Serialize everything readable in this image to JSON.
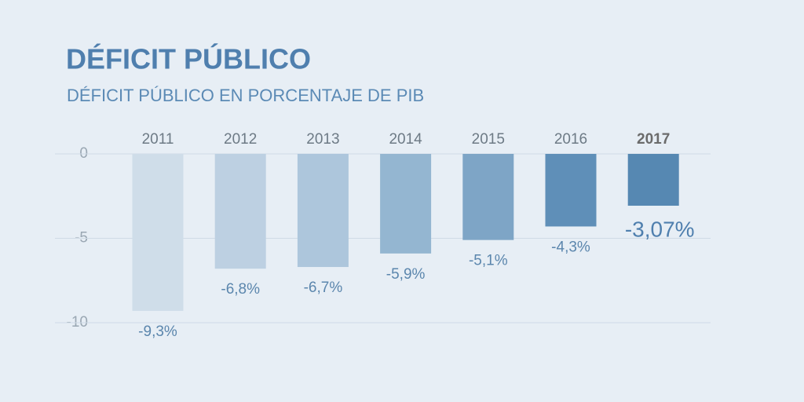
{
  "chart_data": {
    "type": "bar",
    "title": "DÉFICIT PÚBLICO",
    "subtitle": "DÉFICIT PÚBLICO EN PORCENTAJE DE PIB",
    "categories": [
      "2011",
      "2012",
      "2013",
      "2014",
      "2015",
      "2016",
      "2017"
    ],
    "values": [
      -9.3,
      -6.8,
      -6.7,
      -5.9,
      -5.1,
      -4.3,
      -3.07
    ],
    "value_labels": [
      "-9,3%",
      "-6,8%",
      "-6,7%",
      "-5,9%",
      "-5,1%",
      "-4,3%",
      "-3,07%"
    ],
    "colors": [
      "#cfdde9",
      "#bdd0e2",
      "#adc6dc",
      "#94b6d1",
      "#7ea5c6",
      "#5f8fb8",
      "#5688b2"
    ],
    "ylim": [
      -10,
      0
    ],
    "yticks": [
      0,
      -5,
      -10
    ],
    "grid": true
  }
}
